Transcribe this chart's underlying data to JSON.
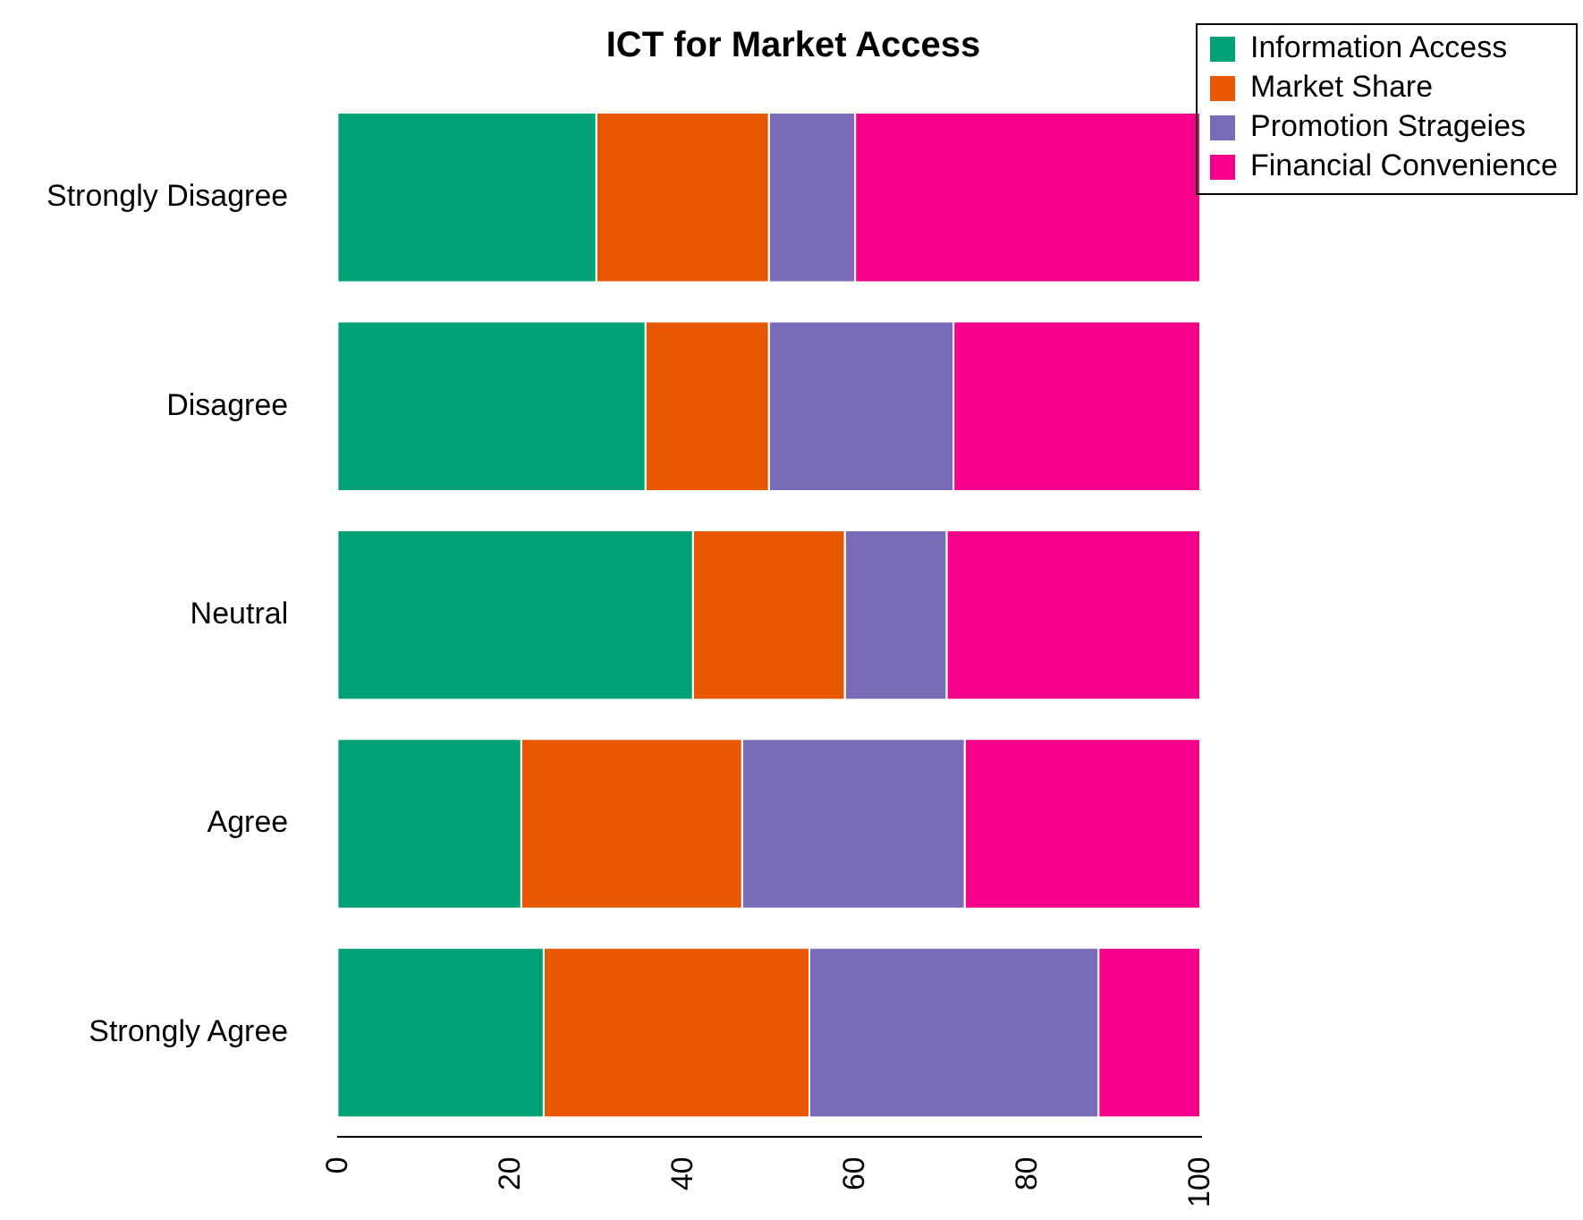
{
  "chart_data": {
    "type": "bar",
    "title": "ICT for Market Access",
    "orientation": "horizontal",
    "stacked": true,
    "categories": [
      "Strongly Disagree",
      "Disagree",
      "Neutral",
      "Agree",
      "Strongly Agree"
    ],
    "series": [
      {
        "name": "Information Access",
        "color": "#00a275",
        "values": [
          30,
          35.7,
          41.2,
          21.3,
          23.9
        ]
      },
      {
        "name": "Market Share",
        "color": "#e85800",
        "values": [
          20,
          14.3,
          17.6,
          25.6,
          30.8
        ]
      },
      {
        "name": "Promotion Strageies",
        "color": "#7a6bb8",
        "values": [
          10,
          21.4,
          11.8,
          25.8,
          33.5
        ]
      },
      {
        "name": "Financial Convenience",
        "color": "#f7008b",
        "values": [
          40,
          28.6,
          29.4,
          27.3,
          11.8
        ]
      }
    ],
    "xlim": [
      0,
      100
    ],
    "xticks": [
      0,
      20,
      40,
      60,
      80,
      100
    ],
    "grid": false,
    "legend": "top right"
  }
}
